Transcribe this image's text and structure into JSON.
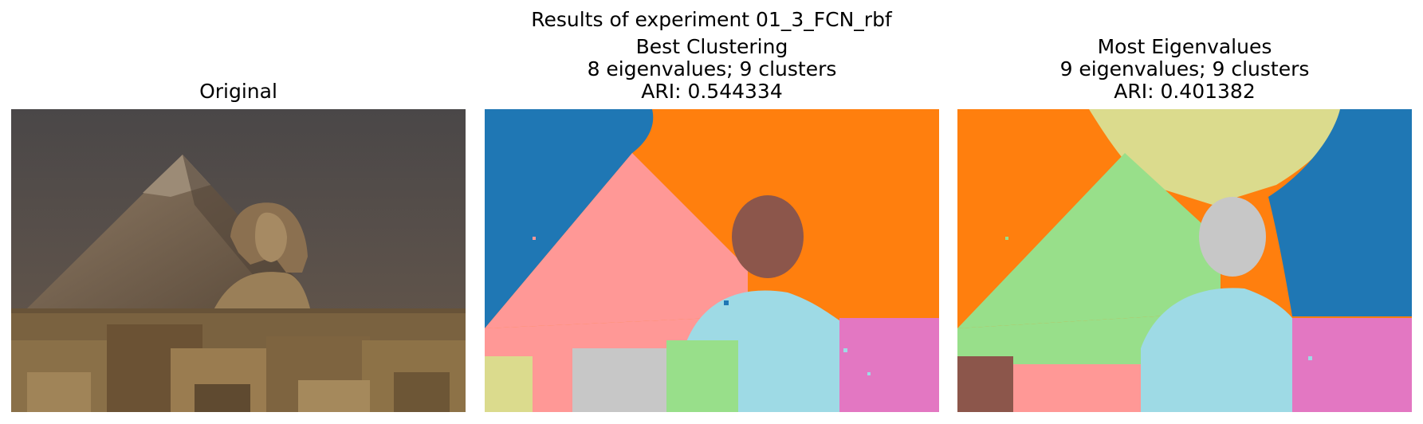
{
  "figure": {
    "suptitle": "Results of experiment 01_3_FCN_rbf"
  },
  "panels": [
    {
      "id": "original",
      "title_lines": [
        "Original"
      ],
      "image": "photo-pyramid-and-sphinx"
    },
    {
      "id": "best-clustering",
      "title_lines": [
        "Best Clustering",
        "8 eigenvalues; 9 clusters",
        "ARI: 0.544334"
      ],
      "image": "segmentation-map",
      "colors": [
        "#1f77b4",
        "#ff7f0e",
        "#ff9896",
        "#8c564b",
        "#9edae5",
        "#e377c2",
        "#98df8a",
        "#c7c7c7",
        "#dbdb8d"
      ]
    },
    {
      "id": "most-eigenvalues",
      "title_lines": [
        "Most Eigenvalues",
        "9 eigenvalues; 9 clusters",
        "ARI: 0.401382"
      ],
      "image": "segmentation-map",
      "colors": [
        "#ff7f0e",
        "#dbdb8d",
        "#98df8a",
        "#1f77b4",
        "#c7c7c7",
        "#9edae5",
        "#e377c2",
        "#8c564b",
        "#ff9896"
      ]
    }
  ]
}
